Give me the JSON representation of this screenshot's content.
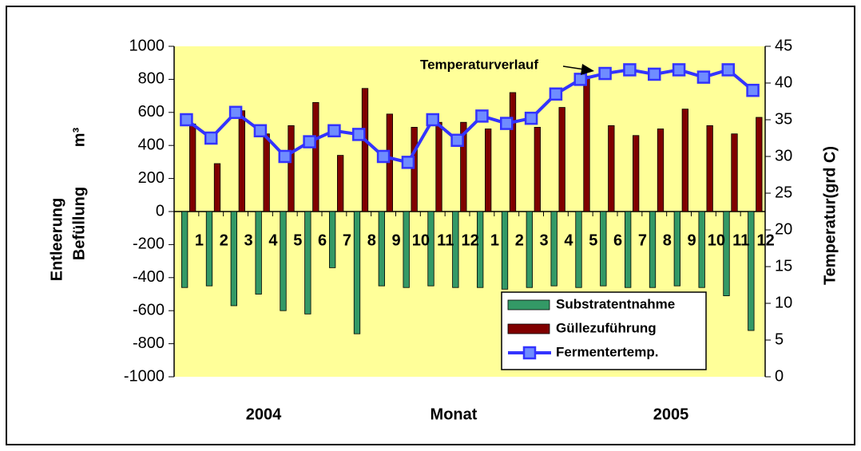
{
  "chart_data": {
    "type": "bar-line",
    "categories": [
      "1",
      "2",
      "3",
      "4",
      "5",
      "6",
      "7",
      "8",
      "9",
      "10",
      "11",
      "12",
      "1",
      "2",
      "3",
      "4",
      "5",
      "6",
      "7",
      "8",
      "9",
      "10",
      "11",
      "12"
    ],
    "x_groups": [
      "2004",
      "2005"
    ],
    "xlabel": "Monat",
    "ylabel_lines": [
      "Entleerung",
      "Befüllung"
    ],
    "ylabel_unit": "m³",
    "y2label": "Temperatur(grd C)",
    "annotation": "Temperaturverlauf",
    "ylim": [
      -1000,
      1000
    ],
    "yticks": [
      -1000,
      -800,
      -600,
      -400,
      -200,
      0,
      200,
      400,
      600,
      800,
      1000
    ],
    "y2lim": [
      0,
      45
    ],
    "y2ticks": [
      0,
      5,
      10,
      15,
      20,
      25,
      30,
      35,
      40,
      45
    ],
    "background": "#ffff99",
    "series": [
      {
        "name": "Substratentnahme",
        "color": "#339966",
        "kind": "bar",
        "values": [
          -460,
          -450,
          -570,
          -500,
          -600,
          -620,
          -340,
          -740,
          -450,
          -460,
          -450,
          -460,
          -460,
          -470,
          -460,
          -450,
          -460,
          -450,
          -460,
          -460,
          -450,
          -460,
          -510,
          -720
        ]
      },
      {
        "name": "Güllezuführung",
        "color": "#800000",
        "kind": "bar",
        "values": [
          530,
          290,
          610,
          470,
          520,
          660,
          340,
          745,
          590,
          510,
          540,
          540,
          500,
          720,
          510,
          630,
          820,
          520,
          460,
          500,
          620,
          520,
          470,
          570
        ]
      },
      {
        "name": "Fermentertemp.",
        "color": "#3333ff",
        "kind": "line",
        "axis": "y2",
        "values": [
          35,
          32.5,
          36,
          33.5,
          30,
          32,
          33.5,
          33,
          30,
          29.2,
          35,
          32.2,
          35.5,
          34.5,
          35.2,
          38.5,
          40.5,
          41.3,
          41.8,
          41.2,
          41.8,
          40.8,
          41.8,
          39
        ]
      }
    ]
  }
}
